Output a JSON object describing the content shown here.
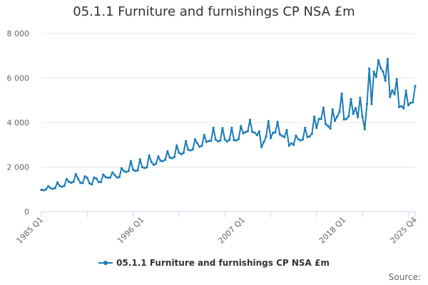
{
  "page": {
    "title": "05.1.1 Furniture and furnishings CP NSA £m",
    "source_label": "Source:"
  },
  "colors": {
    "series": "#1a7bb8",
    "grid": "#e6e6e6",
    "axis": "#ccd6eb"
  },
  "chart_data": {
    "type": "line",
    "title": "05.1.1 Furniture and furnishings CP NSA £m",
    "xlabel": "",
    "ylabel": "",
    "ylim": [
      0,
      8000
    ],
    "yticks": [
      0,
      2000,
      4000,
      6000,
      8000
    ],
    "ytick_labels": [
      "0",
      "2 000",
      "4 000",
      "6 000",
      "8 000"
    ],
    "x_range": [
      "1985 Q1",
      "2025 Q4"
    ],
    "xtick_labels": [
      "1985 Q1",
      "1996 Q1",
      "2007 Q1",
      "2018 Q1",
      "2025 Q4"
    ],
    "grid": true,
    "legend": "bottom",
    "series": [
      {
        "name": "05.1.1 Furniture and furnishings CP NSA £m",
        "values": [
          980,
          960,
          1000,
          1140,
          1060,
          1020,
          1060,
          1310,
          1150,
          1120,
          1160,
          1460,
          1340,
          1300,
          1340,
          1680,
          1480,
          1300,
          1280,
          1580,
          1520,
          1270,
          1220,
          1530,
          1480,
          1330,
          1330,
          1660,
          1560,
          1520,
          1530,
          1760,
          1640,
          1530,
          1550,
          1950,
          1820,
          1780,
          1820,
          2270,
          1880,
          1830,
          1850,
          2350,
          1990,
          1960,
          1990,
          2520,
          2230,
          2100,
          2150,
          2480,
          2280,
          2270,
          2330,
          2710,
          2430,
          2400,
          2450,
          2970,
          2650,
          2580,
          2640,
          3160,
          2780,
          2750,
          2790,
          3240,
          3070,
          2910,
          2960,
          3440,
          3130,
          3170,
          3180,
          3760,
          3230,
          3160,
          3190,
          3750,
          3240,
          3150,
          3220,
          3760,
          3210,
          3200,
          3260,
          3840,
          3520,
          3570,
          3610,
          4120,
          3580,
          3550,
          3440,
          3600,
          2900,
          3120,
          3370,
          4060,
          3300,
          3540,
          3560,
          4030,
          3470,
          3400,
          3350,
          3660,
          2960,
          3070,
          3000,
          3410,
          3260,
          3200,
          3240,
          3760,
          3350,
          3380,
          3500,
          4260,
          3760,
          4160,
          4160,
          4670,
          3930,
          3850,
          3730,
          4590,
          4080,
          4270,
          4480,
          5300,
          4140,
          4160,
          4280,
          5050,
          4390,
          4650,
          4240,
          5110,
          4260,
          3700,
          4840,
          6420,
          4830,
          6280,
          6050,
          6800,
          6450,
          6290,
          5880,
          6850,
          5150,
          5450,
          5270,
          5950,
          4700,
          4730,
          4640,
          5430,
          4780,
          4880,
          4910,
          5640
        ]
      }
    ]
  }
}
